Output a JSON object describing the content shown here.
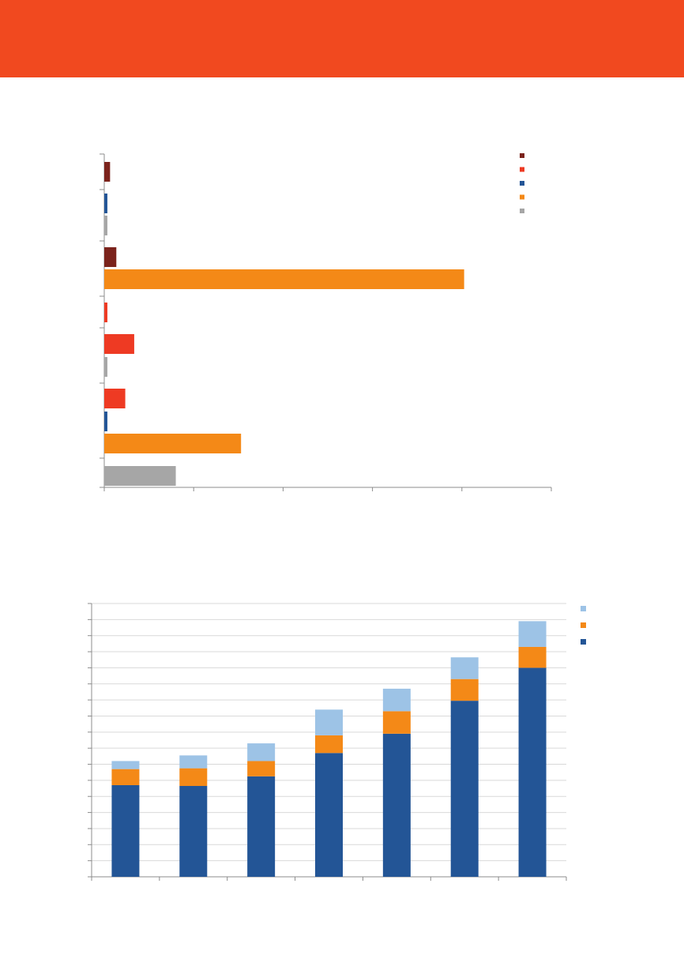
{
  "header": {
    "band_color": "#f1491f"
  },
  "colors": {
    "dark_red": "#7b231c",
    "red": "#ee3a23",
    "blue": "#235596",
    "orange": "#f48917",
    "gray": "#a6a6a6",
    "light_blue": "#9dc3e6",
    "axis": "#8c8c8c",
    "grid": "#d9d9d9"
  },
  "chart_data": [
    {
      "type": "bar",
      "orientation": "horizontal",
      "title": "",
      "xlabel": "",
      "ylabel": "",
      "xlim": [
        0,
        100
      ],
      "grid": false,
      "legend": "top-right",
      "series": [
        {
          "color": "dark_red",
          "values": [
            1.3,
            null,
            null,
            2.7,
            null,
            null,
            null,
            null,
            null
          ]
        },
        {
          "color": "red",
          "values": [
            null,
            null,
            null,
            null,
            0.7,
            6.7,
            null,
            4.7,
            null
          ]
        },
        {
          "color": "blue",
          "values": [
            null,
            0.7,
            null,
            null,
            null,
            null,
            null,
            0.7,
            null
          ]
        },
        {
          "color": "orange",
          "values": [
            null,
            null,
            null,
            80.5,
            null,
            null,
            null,
            30.6,
            null
          ]
        },
        {
          "color": "gray",
          "values": [
            null,
            null,
            0.7,
            null,
            null,
            null,
            0.7,
            null,
            16.0
          ]
        }
      ],
      "bars": [
        {
          "series": 0,
          "value": 1.3
        },
        {
          "series": 2,
          "value": 0.7
        },
        {
          "series": 4,
          "value": 0.7
        },
        {
          "series": 0,
          "value": 2.7
        },
        {
          "series": 3,
          "value": 80.5
        },
        {
          "series": 1,
          "value": 0.7
        },
        {
          "series": 1,
          "value": 6.7
        },
        {
          "series": 4,
          "value": 0.7
        },
        {
          "series": 1,
          "value": 4.7
        },
        {
          "series": 2,
          "value": 0.7
        },
        {
          "series": 3,
          "value": 30.6
        },
        {
          "series": 4,
          "value": 16.0
        }
      ]
    },
    {
      "type": "bar",
      "stacked": true,
      "title": "",
      "xlabel": "",
      "ylabel": "",
      "ylim": [
        0,
        17
      ],
      "grid": true,
      "legend": "top-right",
      "categories": [
        "",
        "",
        "",
        "",
        "",
        "",
        ""
      ],
      "series": [
        {
          "color": "blue",
          "values": [
            5.7,
            5.65,
            6.25,
            7.7,
            8.9,
            10.95,
            13.0
          ]
        },
        {
          "color": "orange",
          "values": [
            1.0,
            1.1,
            0.95,
            1.1,
            1.4,
            1.35,
            1.3
          ]
        },
        {
          "color": "light_blue",
          "values": [
            0.5,
            0.8,
            1.1,
            1.6,
            1.4,
            1.35,
            1.6
          ]
        }
      ]
    }
  ]
}
